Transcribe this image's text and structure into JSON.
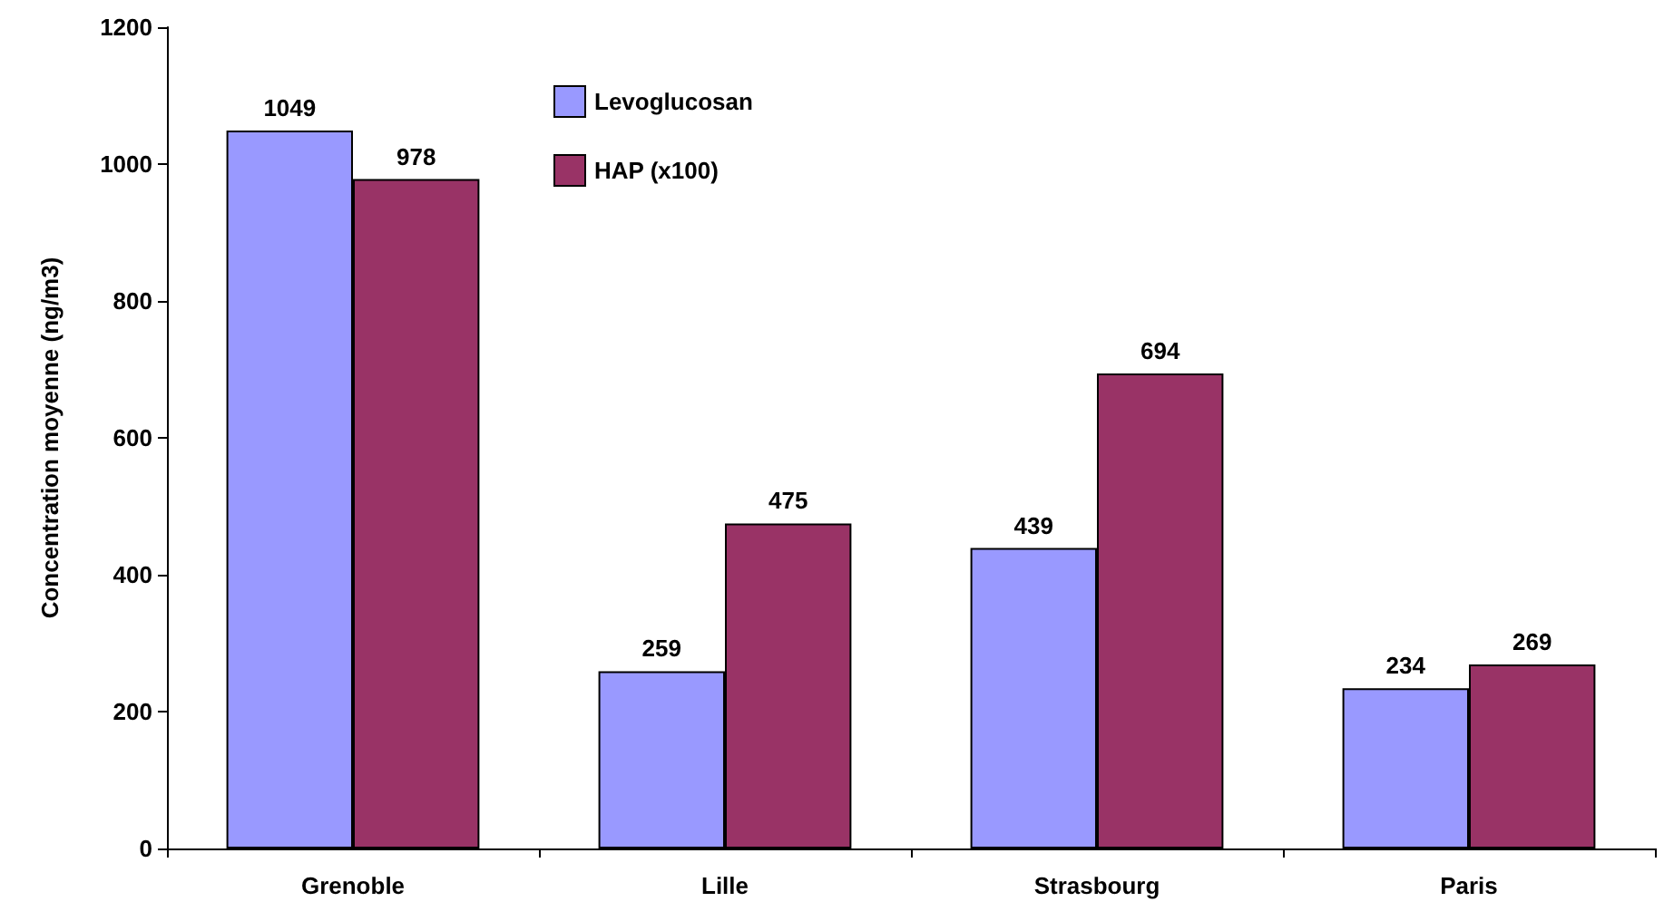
{
  "chart_data": {
    "type": "bar",
    "ylabel": "Concentration moyenne (ng/m3)",
    "categories": [
      "Grenoble",
      "Lille",
      "Strasbourg",
      "Paris"
    ],
    "series": [
      {
        "name": "Levoglucosan",
        "color": "#9999ff",
        "values": [
          1049,
          259,
          439,
          234
        ]
      },
      {
        "name": "HAP (x100)",
        "color": "#993366",
        "values": [
          978,
          475,
          694,
          269
        ]
      }
    ],
    "ylim": [
      0,
      1200
    ],
    "yticks": [
      0,
      200,
      400,
      600,
      800,
      1000,
      1200
    ],
    "grid": false,
    "legend": "top left",
    "data_labels": true
  }
}
